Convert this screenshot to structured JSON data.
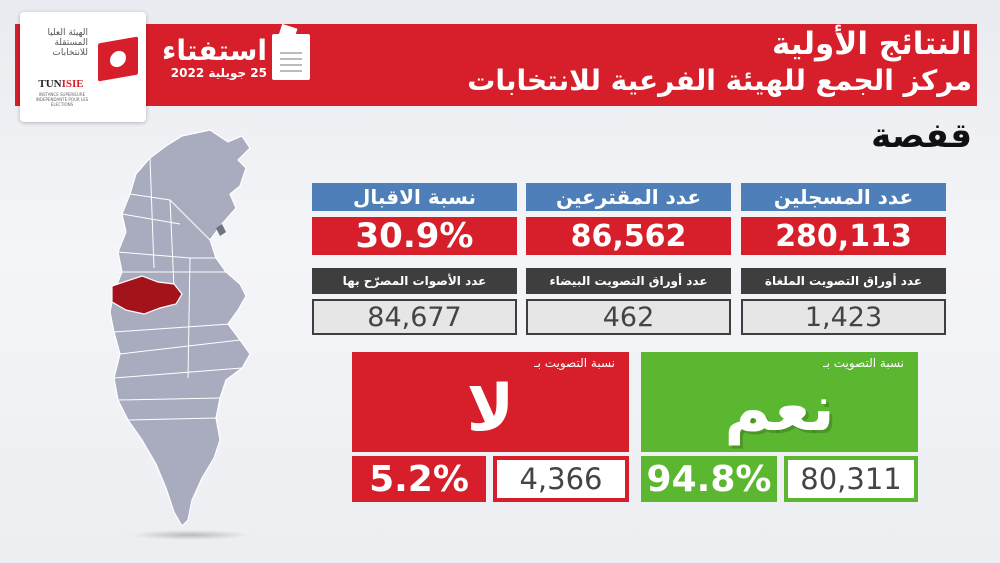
{
  "header": {
    "logo_arabic": "الهيئة العليا المستقلة للانتخابات",
    "logo_acronym_prefix": "TUN",
    "logo_acronym": "ISIE",
    "logo_french": "INSTANCE SUPERIEURE INDEPENDANTE POUR LES ELECTIONS",
    "referendum_word": "استفتاء",
    "referendum_date": "25 جويلية 2022",
    "title": "النتائج الأولية",
    "subtitle": "مركز الجمع للهيئة الفرعية للانتخابات"
  },
  "region": "قفصة",
  "map": {
    "highlight_color": "#a3131c",
    "base_color": "#a9acbf",
    "icon": "tunisia-map-icon"
  },
  "stats": {
    "registered": {
      "label": "عدد المسجلين",
      "value": "280,113"
    },
    "voters": {
      "label": "عدد المقترعين",
      "value": "86,562"
    },
    "turnout": {
      "label": "نسبة الاقبال",
      "value": "30.9%"
    },
    "cancelled": {
      "label": "عدد أوراق التصويت الملغاة",
      "value": "1,423"
    },
    "blank": {
      "label": "عدد أوراق التصويت البيضاء",
      "value": "462"
    },
    "valid": {
      "label": "عدد الأصوات المصرّح بها",
      "value": "84,677"
    }
  },
  "results": {
    "yes": {
      "caption": "نسبة التصويت بـ",
      "word": "نعم",
      "percent": "94.8%",
      "count": "80,311",
      "color": "#5cb730"
    },
    "no": {
      "caption": "نسبة التصويت بـ",
      "word": "لا",
      "percent": "5.2%",
      "count": "4,366",
      "color": "#d61f2a"
    }
  }
}
